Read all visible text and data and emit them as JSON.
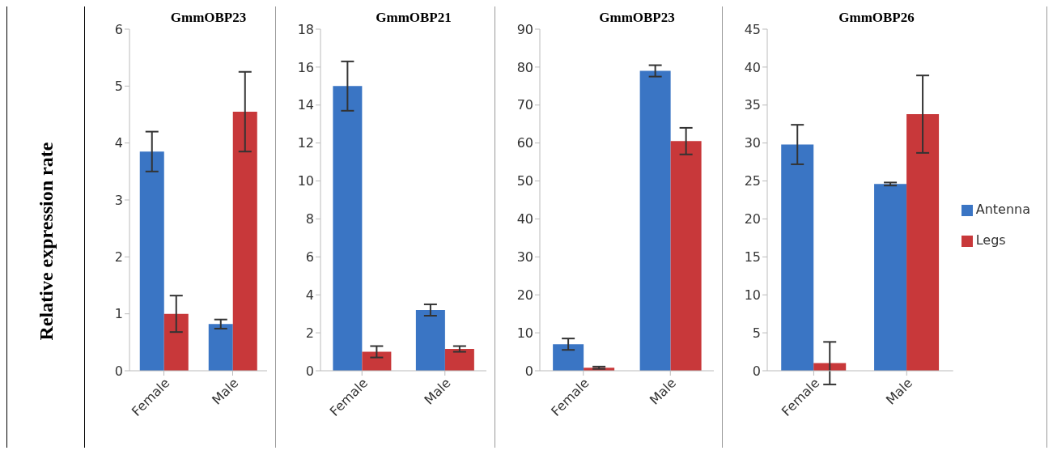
{
  "chart_data": [
    {
      "type": "bar",
      "title": "GmmOBP23",
      "ylabel": "Relative expression rate",
      "categories": [
        "Female",
        "Male"
      ],
      "ylim": [
        0,
        6
      ],
      "yticks": [
        0,
        1,
        2,
        3,
        4,
        5,
        6
      ],
      "grid": false,
      "legend": false,
      "series": [
        {
          "color": "#3a75c4",
          "values": [
            3.85,
            0.82
          ],
          "errors": [
            0.35,
            0.08
          ]
        },
        {
          "color": "#c8383a",
          "values": [
            1.0,
            4.55
          ],
          "errors": [
            0.32,
            0.7
          ]
        }
      ]
    },
    {
      "type": "bar",
      "title": "GmmOBP21",
      "categories": [
        "Female",
        "Male"
      ],
      "ylim": [
        0,
        18
      ],
      "yticks": [
        0,
        2,
        4,
        6,
        8,
        10,
        12,
        14,
        16,
        18
      ],
      "grid": false,
      "legend": false,
      "series": [
        {
          "color": "#3a75c4",
          "values": [
            15,
            3.2
          ],
          "errors": [
            1.3,
            0.3
          ]
        },
        {
          "color": "#c8383a",
          "values": [
            1.0,
            1.15
          ],
          "errors": [
            0.3,
            0.15
          ]
        }
      ]
    },
    {
      "type": "bar",
      "title": "GmmOBP23",
      "categories": [
        "Female",
        "Male"
      ],
      "ylim": [
        0,
        90
      ],
      "yticks": [
        0,
        10,
        20,
        30,
        40,
        50,
        60,
        70,
        80,
        90
      ],
      "grid": false,
      "legend": false,
      "series": [
        {
          "color": "#3a75c4",
          "values": [
            7,
            79
          ],
          "errors": [
            1.5,
            1.5
          ]
        },
        {
          "color": "#c8383a",
          "values": [
            0.8,
            60.5
          ],
          "errors": [
            0.3,
            3.5
          ]
        }
      ]
    },
    {
      "type": "bar",
      "title": "GmmOBP26",
      "categories": [
        "Female",
        "Male"
      ],
      "ylim": [
        0,
        45
      ],
      "yticks": [
        0,
        5,
        10,
        15,
        20,
        25,
        30,
        35,
        40,
        45
      ],
      "grid": false,
      "legend": "right",
      "series": [
        {
          "name": "Antenna",
          "color": "#3a75c4",
          "values": [
            29.8,
            24.6
          ],
          "errors": [
            2.6,
            0.2
          ]
        },
        {
          "name": "Legs",
          "color": "#c8383a",
          "values": [
            1,
            33.8
          ],
          "errors": [
            2.8,
            5.1
          ]
        }
      ]
    }
  ]
}
